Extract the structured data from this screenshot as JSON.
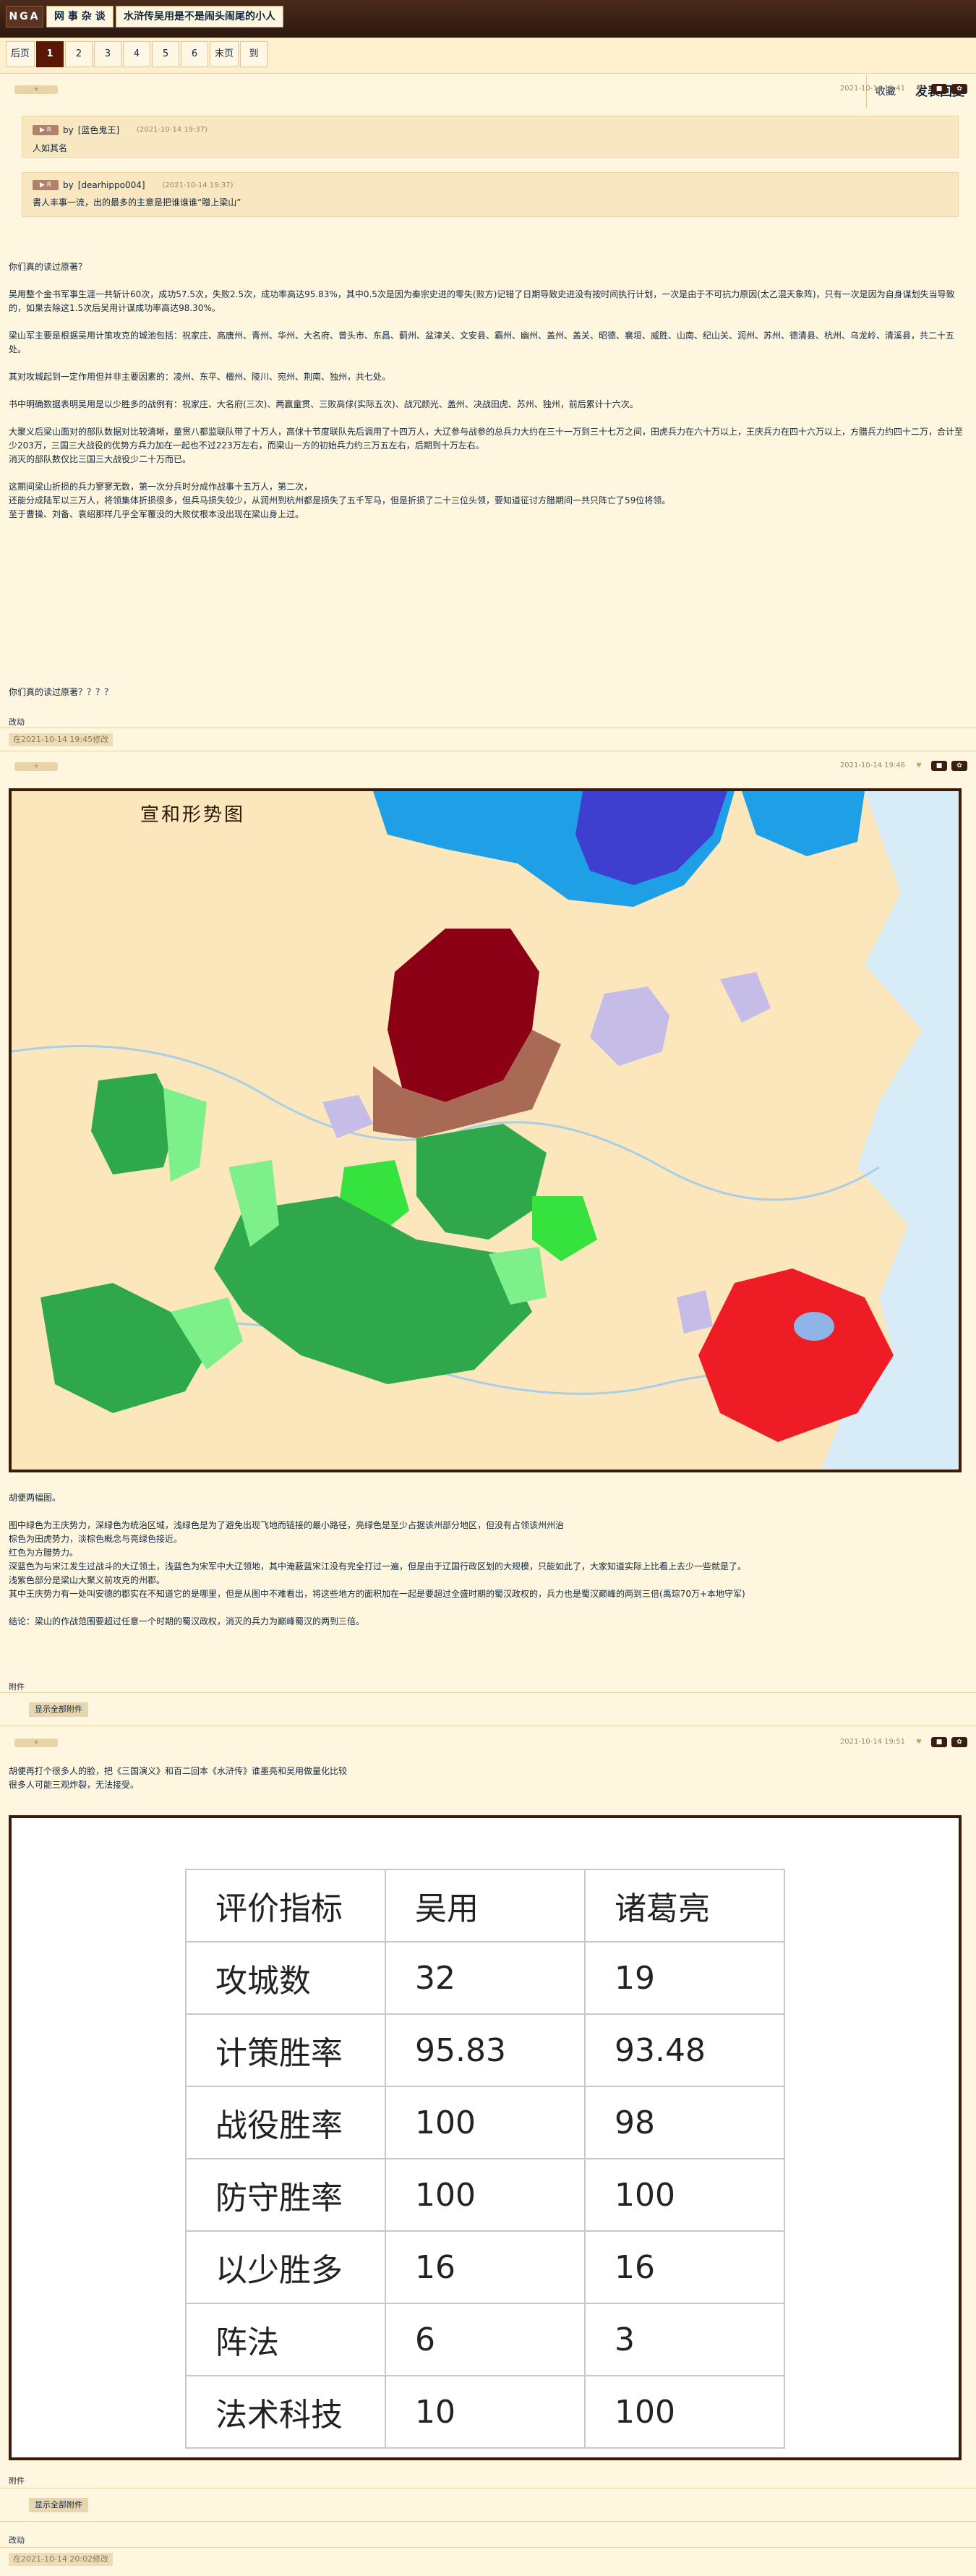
{
  "header": {
    "logo": "NGA",
    "forum": "网 事 杂 谈",
    "thread_title": "水浒传吴用是不是闹头闹尾的小人"
  },
  "pager": {
    "pages": [
      "后页",
      "1",
      "2",
      "3",
      "4",
      "5",
      "6",
      "末页",
      "到"
    ],
    "current": "1",
    "favorite": "收藏",
    "reply": "发表回复"
  },
  "post1": {
    "time": "2021-10-14 19:41",
    "quotes": [
      {
        "by": "by",
        "user": "[蓝色鬼王]",
        "time": "(2021-10-14 19:37)",
        "text": "人如其名"
      },
      {
        "by": "by",
        "user": "[dearhippo004]",
        "time": "(2021-10-14 19:37)",
        "text": "書人丰事一流，出的最多的主意是把谁谁谁“贈上梁山”"
      }
    ],
    "paragraphs": [
      "你们真的读过原著？",
      "吴用整个金书军事生涯一共斩计60次，成功57.5次，失败2.5次，成功率高达95.83%，其中0.5次是因为秦宗史进的零失(败方)记错了日期导致史进没有按时间执行计划，一次是由于不可抗力原因(太乙混天象阵)，只有一次是因为自身谋划失当导致的，如果去除这1.5次后吴用计谋成功率高达98.30%。",
      "梁山军主要是根据吴用计策攻克的城池包括：祝家庄、高唐州、青州、华州、大名府、曾头市、东昌、蓟州、盆津关、文安县、霸州、幽州、盖州、盖关、昭德、襄垣、威胜、山南、纪山关、润州、苏州、德清县、杭州、乌龙岭、清溪县，共二十五处。",
      "其对攻城起到一定作用但并非主要因素的：凌州、东平、檀州、陵川、宛州、荆南、独州，共七处。",
      "书中明确数据表明吴用是以少胜多的战例有：祝家庄、大名府(三次)、两赢童贯、三败高俅(实际五次)、战冗颜光、盖州、决战田虎、苏州、独州，前后累计十六次。",
      "大聚义后梁山面对的部队数据对比较清晰，童贯八都监联队带了十万人，高俅十节度联队先后调用了十四万人，大辽参与战参的总兵力大约在三十一万到三十七万之间，田虎兵力在六十万以上，王庆兵力在四十六万以上，方腊兵力约四十二万，合计至少203万，三国三大战役的优势方兵力加在一起也不过223万左右，而梁山一方的初始兵力约三万五左右，后期到十万左右。",
      "消灭的部队数仅比三国三大战役少二十万而已。",
      "这期间梁山折损的兵力寥寥无数，第一次分兵时分成作战事十五万人，第二次，",
      "还能分成陆军以三万人，将领集体折损很多，但兵马损失较少，从润州到杭州都是损失了五千军马，但是折损了二十三位头领，要知道征讨方腊期间一共只阵亡了59位将领。",
      "至于曹操、刘备、袁绍那样几乎全军覆没的大败仗根本没出现在梁山身上过。",
      "你们真的读过原著？？？？"
    ],
    "edit": "改动",
    "edit_time": "在2021-10-14 19:45修改"
  },
  "post2": {
    "time": "2021-10-14 19:46",
    "map_title": "宣和形势图",
    "paragraphs": [
      "胡便两幅图。",
      "图中绿色为王庆势力，深绿色为统治区域，浅绿色是为了避免出现飞地而链接的最小路径，亮绿色是至少占据该州部分地区，但没有占领该州州治",
      "棕色为田虎势力，淡棕色概念与亮绿色接近。",
      "红色为方腊势力。",
      "深蓝色为与宋江发生过战斗的大辽领土，浅蓝色为宋军中大辽领地，其中淹蔽蓝宋江没有完全打过一遍，但是由于辽国行政区划的大规模，只能如此了，大家知道实际上比看上去少一些就是了。",
      "浅紫色部分是梁山大聚义前攻克的州郡。",
      "其中王庆势力有一处叫安德的郡实在不知道它的是哪里，但是从图中不难看出，将这些地方的面积加在一起是要超过全盛时期的蜀汉政权的，兵力也是蜀汉巅峰的两到三倍(禹琮70万+本地守军)",
      "结论：梁山的作战范围要超过任意一个时期的蜀汉政权，消灭的兵力为巅峰蜀汉的两到三倍。"
    ],
    "attach": "附件",
    "attach_btn": "显示全部附件"
  },
  "post3": {
    "time": "2021-10-14 19:51",
    "paragraphs": [
      "胡便再打个很多人的脸，把《三国演义》和百二回本《水浒传》谁墨亮和吴用做量化比较",
      "很多人可能三观炸裂，无法接受。"
    ],
    "table": {
      "header": [
        "评价指标",
        "吴用",
        "诸葛亮"
      ],
      "rows": [
        [
          "攻城数",
          "32",
          "19"
        ],
        [
          "计策胜率",
          "95.83",
          "93.48"
        ],
        [
          "战役胜率",
          "100",
          "98"
        ],
        [
          "防守胜率",
          "100",
          "100"
        ],
        [
          "以少胜多",
          "16",
          "16"
        ],
        [
          "阵法",
          "6",
          "3"
        ],
        [
          "法术科技",
          "10",
          "100"
        ]
      ]
    },
    "attach": "附件",
    "attach_btn": "显示全部附件",
    "edit": "改动",
    "edit_time": "在2021-10-14 20:02修改"
  },
  "colors": {
    "header_bg": "#2c180f",
    "page_bg": "#fff6df",
    "current_page": "#591804",
    "song_region": "#fbe7bb",
    "wang_qing_dark": "#2ea84a",
    "wang_qing_light": "#7ef08a",
    "tian_hu": "#8b0015",
    "tian_hu_light": "#a86a55",
    "fang_la": "#ee1c24",
    "liao_dark": "#3f3fcf",
    "liao_light": "#1f9fe6",
    "liangshan": "#c5bde8"
  }
}
